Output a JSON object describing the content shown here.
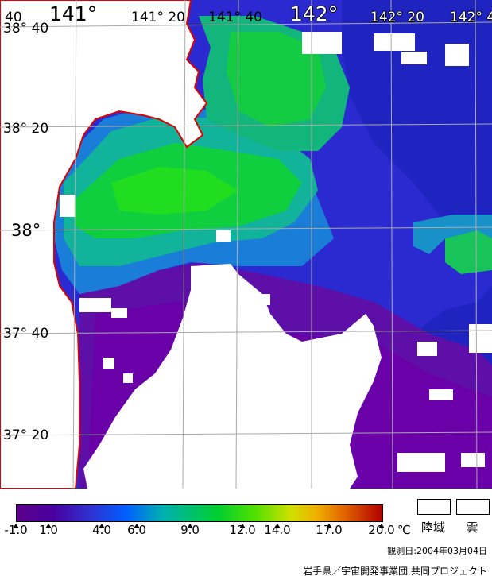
{
  "map": {
    "longitude_labels": {
      "lon_40": "40",
      "lon_141": "141°",
      "lon_141_20": "141° 20",
      "lon_141_40": "141° 40",
      "lon_142": "142°",
      "lon_142_20": "142° 20",
      "lon_142_40": "142° 4"
    },
    "latitude_labels": {
      "lat_38_40": "38° 40",
      "lat_38_20": "38° 20",
      "lat_38": "38°",
      "lat_37_40": "37° 40",
      "lat_37_20": "37° 20"
    },
    "colors": {
      "coastline": "#e00000",
      "land": "#ffffff",
      "cloud": "#ffffff",
      "grid": "#aaaaaa"
    }
  },
  "legend": {
    "ticks": [
      "-1.0",
      "1.0",
      "4.0",
      "6.0",
      "9.0",
      "12.0",
      "14.0",
      "17.0",
      "20.0"
    ],
    "unit": "℃",
    "land_label": "陸域",
    "cloud_label": "雲"
  },
  "footer": {
    "observation_date": "観測日:2004年03月04日",
    "credit": "岩手県／宇宙開発事業団 共同プロジェクト"
  }
}
